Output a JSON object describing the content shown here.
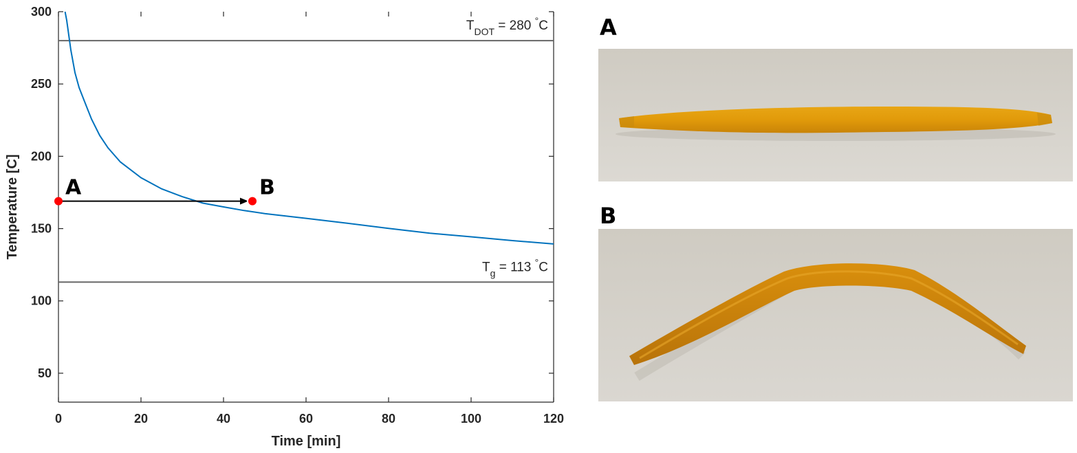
{
  "chart_data": {
    "type": "line",
    "xlabel": "Time [min]",
    "ylabel": "Temperature [C]",
    "xlim": [
      0,
      120
    ],
    "ylim": [
      30,
      300
    ],
    "x_ticks": [
      0,
      20,
      40,
      60,
      80,
      100,
      120
    ],
    "y_ticks": [
      50,
      100,
      150,
      200,
      250,
      300
    ],
    "grid": false,
    "series": [
      {
        "color": "#0072BD",
        "x": [
          1.6,
          2,
          3,
          4,
          5,
          6,
          8,
          10,
          12,
          15,
          20,
          25,
          30,
          35,
          40,
          45,
          50,
          60,
          70,
          80,
          90,
          100,
          110,
          120
        ],
        "y": [
          300,
          294,
          273.5,
          257.9,
          247.5,
          240.2,
          225.8,
          214.4,
          205.9,
          196.1,
          185.2,
          177.5,
          172.1,
          167.6,
          165,
          162.5,
          160.4,
          157.1,
          153.7,
          150.1,
          146.8,
          144.3,
          141.7,
          139.4
        ]
      }
    ],
    "reference_lines": [
      {
        "value": 280,
        "color": "#666666",
        "label_main": "T",
        "label_sub": "DOT",
        "label_rest": " = 280 ",
        "label_deg": "°",
        "label_unit": "C"
      },
      {
        "value": 113,
        "color": "#666666",
        "label_main": "T",
        "label_sub": "g",
        "label_rest": " = 113 ",
        "label_deg": "°",
        "label_unit": "C"
      }
    ],
    "points": [
      {
        "label": "A",
        "x": 0,
        "y": 169,
        "color": "#FF0000"
      },
      {
        "label": "B",
        "x": 47,
        "y": 169,
        "color": "#FF0000"
      }
    ],
    "arrow": {
      "from": [
        0,
        169
      ],
      "to": [
        45.5,
        169
      ],
      "color": "#000000"
    }
  },
  "panels": [
    {
      "label": "A",
      "description_shape": "straight"
    },
    {
      "label": "B",
      "description_shape": "bent"
    }
  ]
}
